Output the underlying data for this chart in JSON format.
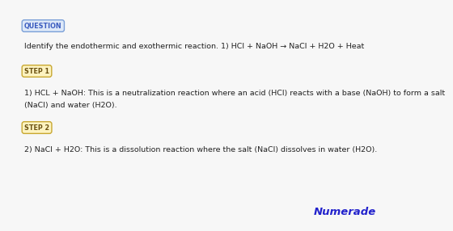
{
  "background_color": "#f7f7f7",
  "question_label": "QUESTION",
  "question_label_bg": "#dde8f8",
  "question_label_border": "#7a9fd8",
  "question_label_color": "#3a5bbf",
  "question_text": "Identify the endothermic and exothermic reaction. 1) HCl + NaOH → NaCl + H2O + Heat",
  "step1_label": "STEP 1",
  "step1_label_bg": "#fdf3c0",
  "step1_label_border": "#c8a832",
  "step1_label_color": "#6a5010",
  "step1_text_line1": "1) HCL + NaOH: This is a neutralization reaction where an acid (HCl) reacts with a base (NaOH) to form a salt",
  "step1_text_line2": "(NaCl) and water (H2O).",
  "step2_label": "STEP 2",
  "step2_label_bg": "#fdf3c0",
  "step2_label_border": "#c8a832",
  "step2_label_color": "#6a5010",
  "step2_text": "2) NaCl + H2O: This is a dissolution reaction where the salt (NaCl) dissolves in water (H2O).",
  "numerade_text": "Numerade",
  "numerade_color": "#2222cc",
  "text_color": "#222222",
  "font_size": 6.8,
  "label_font_size": 5.8
}
